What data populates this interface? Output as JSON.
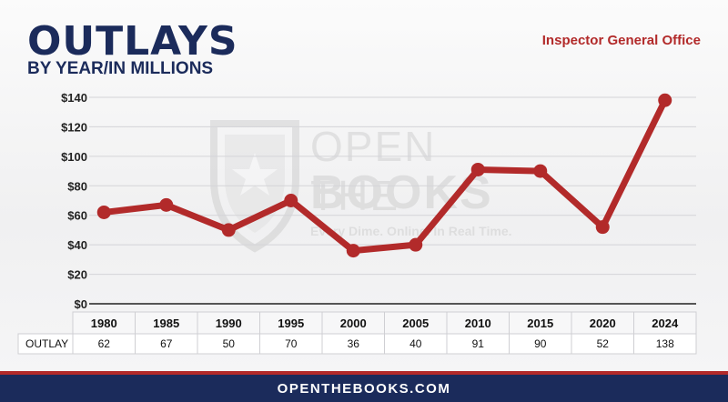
{
  "header": {
    "title": "OUTLAYS",
    "subtitle": "BY YEAR/IN MILLIONS",
    "source": "Inspector General Office"
  },
  "watermark": {
    "line1": "OPEN THE",
    "line2": "BOOKS",
    "tagline": "Every Dime. Online. In Real Time."
  },
  "footer": {
    "text": "OPENTHEBOOKS.COM"
  },
  "colors": {
    "line": "#b22a2a",
    "navy": "#1b2b5b",
    "accent_red": "#b22a2a"
  },
  "chart_data": {
    "type": "line",
    "title": "OUTLAYS",
    "subtitle": "BY YEAR/IN MILLIONS",
    "categories": [
      "1980",
      "1985",
      "1990",
      "1995",
      "2000",
      "2005",
      "2010",
      "2015",
      "2020",
      "2024"
    ],
    "series": [
      {
        "name": "OUTLAY",
        "values": [
          62,
          67,
          50,
          70,
          36,
          40,
          91,
          90,
          52,
          138
        ]
      }
    ],
    "y_tick_labels": [
      "$0",
      "$20",
      "$40",
      "$60",
      "$80",
      "$100",
      "$120",
      "$140"
    ],
    "ylim": [
      0,
      140
    ],
    "grid": true,
    "table_row_label": "OUTLAY"
  }
}
